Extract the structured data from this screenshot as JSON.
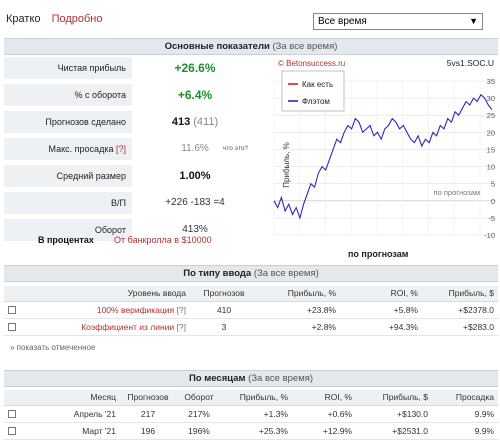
{
  "tabs": {
    "active": "Кратко",
    "link": "Подробно"
  },
  "period_select": {
    "value": "Все время",
    "chevron": "chevron-down-icon"
  },
  "main_panel": {
    "title": "Основные показатели",
    "subtitle": "(За все время)"
  },
  "stats": [
    {
      "label": "Чистая прибыль",
      "value": "+26.6%"
    },
    {
      "label": "% с оборота",
      "value": "+6.4%"
    },
    {
      "label": "Прогнозов сделано",
      "value": "413",
      "extra": "(411)"
    },
    {
      "label": "Макс. просадка",
      "help": "[?]",
      "value": "11.6%",
      "extra": "что это?"
    },
    {
      "label": "Средний размер",
      "value": "1.00%"
    },
    {
      "label": "В/П",
      "value": "+226 -183 =4"
    },
    {
      "label": "Оборот",
      "value": "413%"
    }
  ],
  "percent_row": {
    "label": "В процентах",
    "link": "От банкролла в $10000"
  },
  "chart_data": {
    "type": "line",
    "watermark": "© Betonsuccess.ru",
    "site": "5vs1.SOC.U",
    "legend": [
      "Как есть",
      "Флэтом"
    ],
    "ylabel": "Прибыль, %",
    "xlabel": "по прогнозам",
    "inner_label": "по прогнозам",
    "ylim": [
      -10,
      35
    ],
    "yticks": [
      "35",
      "30",
      "25",
      "20",
      "15",
      "10",
      "5",
      "0",
      "-5",
      "-10"
    ],
    "series": [
      {
        "name": "Флэтом",
        "color": "#2b2bb8",
        "values": [
          0,
          -2,
          1,
          -3,
          -1,
          -4,
          -2,
          -5,
          -1,
          2,
          5,
          4,
          8,
          10,
          9,
          12,
          15,
          18,
          17,
          20,
          22,
          21,
          24,
          23,
          20,
          21,
          22,
          19,
          20,
          18,
          21,
          22,
          24,
          23,
          21,
          22,
          20,
          18,
          17,
          19,
          16,
          18,
          17,
          20,
          19,
          22,
          21,
          24,
          23,
          26,
          25,
          27,
          29,
          28,
          30,
          29,
          31,
          30,
          28,
          26.6
        ]
      }
    ]
  },
  "type_panel": {
    "title": "По типу ввода",
    "subtitle": "(За все время)"
  },
  "type_table": {
    "headers": [
      "Уровень ввода",
      "Прогнозов",
      "Прибыль, %",
      "ROI, %",
      "Прибыль, $"
    ],
    "rows": [
      {
        "level": "100% верификация",
        "help": "[?]",
        "count": "410",
        "profit": "+23.8%",
        "roi": "+5.8%",
        "usd": "+$2378.0"
      },
      {
        "level": "Коэффициент из линии",
        "help": "[?]",
        "count": "3",
        "profit": "+2.8%",
        "roi": "+94.3%",
        "usd": "+$283.0"
      }
    ],
    "show_marked": "» показать отмеченное"
  },
  "month_panel": {
    "title": "По месяцам",
    "subtitle": "(За все время)"
  },
  "month_table": {
    "headers": [
      "Месяц",
      "Прогнозов",
      "Оборот",
      "Прибыль, %",
      "ROI, %",
      "Прибыль, $",
      "Просадка"
    ],
    "rows": [
      {
        "month": "Апрель '21",
        "count": "217",
        "turnover": "217%",
        "profit": "+1.3%",
        "roi": "+0.6%",
        "usd": "+$130.0",
        "drawdown": "9.9%"
      },
      {
        "month": "Март '21",
        "count": "196",
        "turnover": "196%",
        "profit": "+25.3%",
        "roi": "+12.9%",
        "usd": "+$2531.0",
        "drawdown": "9.9%"
      }
    ]
  }
}
